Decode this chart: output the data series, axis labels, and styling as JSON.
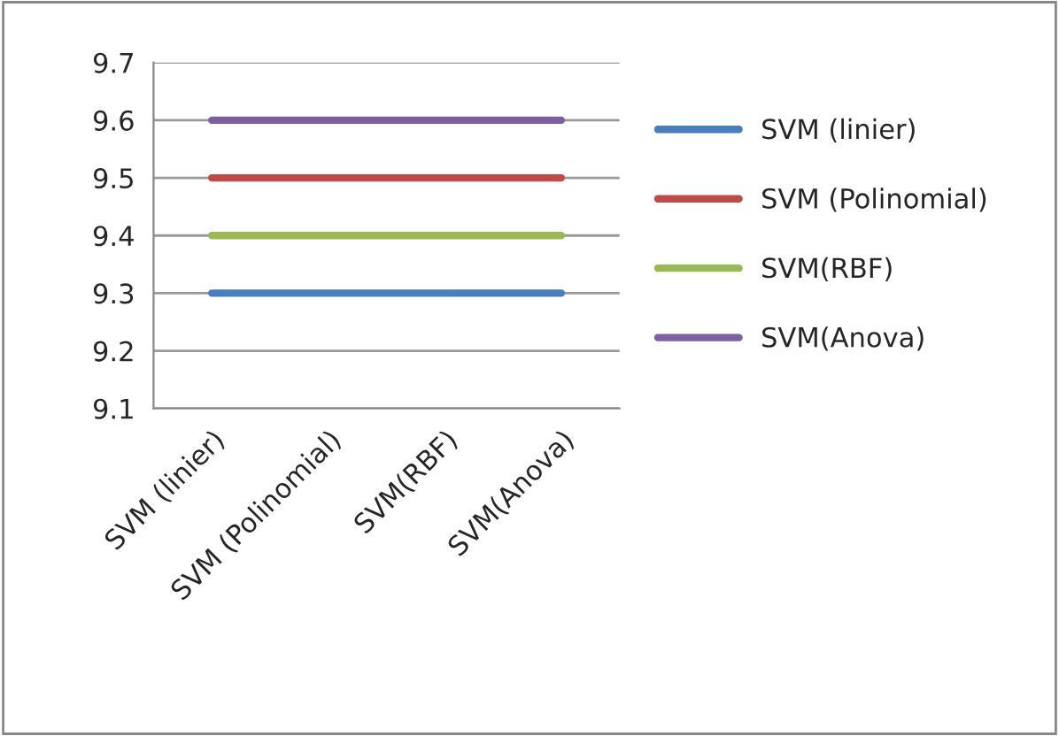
{
  "chart_data": {
    "type": "line",
    "categories": [
      "SVM (linier)",
      "SVM (Polinomial)",
      "SVM(RBF)",
      "SVM(Anova)"
    ],
    "series": [
      {
        "name": "SVM (linier)",
        "color": "#4a7ebb",
        "values": [
          9.3,
          9.3,
          9.3,
          9.3
        ]
      },
      {
        "name": "SVM (Polinomial)",
        "color": "#be4b48",
        "values": [
          9.5,
          9.5,
          9.5,
          9.5
        ]
      },
      {
        "name": "SVM(RBF)",
        "color": "#98b954",
        "values": [
          9.4,
          9.4,
          9.4,
          9.4
        ]
      },
      {
        "name": "SVM(Anova)",
        "color": "#7d60a0",
        "values": [
          9.6,
          9.6,
          9.6,
          9.6
        ]
      }
    ],
    "ylim": [
      9.1,
      9.7
    ],
    "yticks": [
      9.1,
      9.2,
      9.3,
      9.4,
      9.5,
      9.6,
      9.7
    ],
    "grid": "y",
    "legend": "right",
    "marker": "none",
    "line_style": "solid"
  }
}
